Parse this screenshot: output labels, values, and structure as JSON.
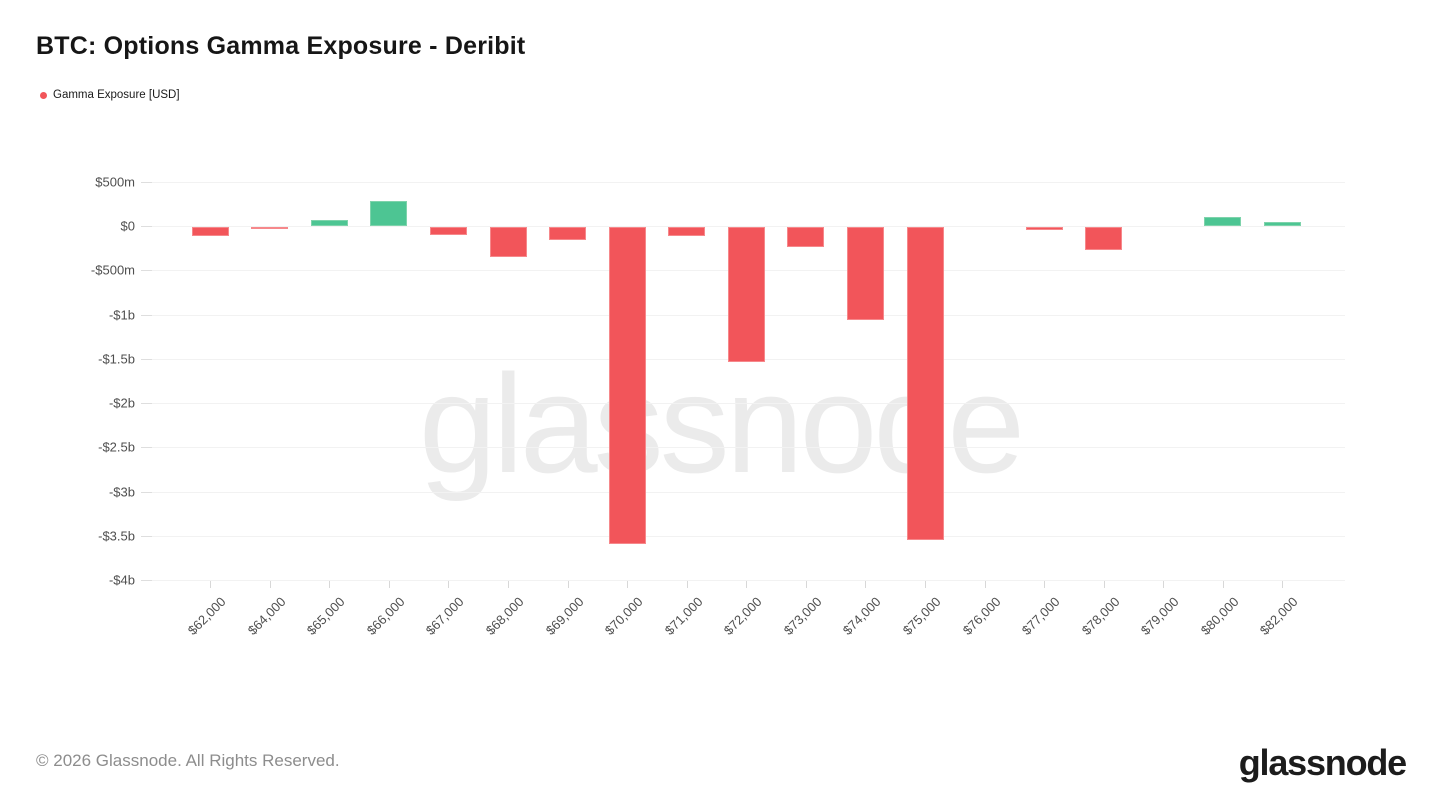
{
  "title": "BTC: Options Gamma Exposure - Deribit",
  "legend": {
    "label": "Gamma Exposure [USD]",
    "dot_color": "#f2555a"
  },
  "watermark": "glassnode",
  "footer": {
    "copyright": "© 2026 Glassnode. All Rights Reserved.",
    "logo": "glassnode"
  },
  "chart_data": {
    "type": "bar",
    "title": "BTC: Options Gamma Exposure - Deribit",
    "series_name": "Gamma Exposure [USD]",
    "categories": [
      "$62,000",
      "$64,000",
      "$65,000",
      "$66,000",
      "$67,000",
      "$68,000",
      "$69,000",
      "$70,000",
      "$71,000",
      "$72,000",
      "$73,000",
      "$74,000",
      "$75,000",
      "$76,000",
      "$77,000",
      "$78,000",
      "$79,000",
      "$80,000",
      "$82,000"
    ],
    "values_usd_millions": [
      -100,
      -25,
      75,
      285,
      -90,
      -340,
      -150,
      -3580,
      -95,
      -1520,
      -225,
      -1050,
      -3540,
      0,
      -30,
      -260,
      0,
      100,
      50
    ],
    "y_ticks": [
      "$500m",
      "$0",
      "-$500m",
      "-$1b",
      "-$1.5b",
      "-$2b",
      "-$2.5b",
      "-$3b",
      "-$3.5b",
      "-$4b"
    ],
    "y_tick_values_millions": [
      500,
      0,
      -500,
      -1000,
      -1500,
      -2000,
      -2500,
      -3000,
      -3500,
      -4000
    ],
    "ylim_millions": [
      -4000,
      500
    ],
    "grid": true,
    "legend_position": "top-left",
    "bar_colors": {
      "positive": "#4dc593",
      "negative": "#f2555a",
      "positive_border": "#7ed3ab",
      "negative_border": "#f6888b"
    }
  }
}
